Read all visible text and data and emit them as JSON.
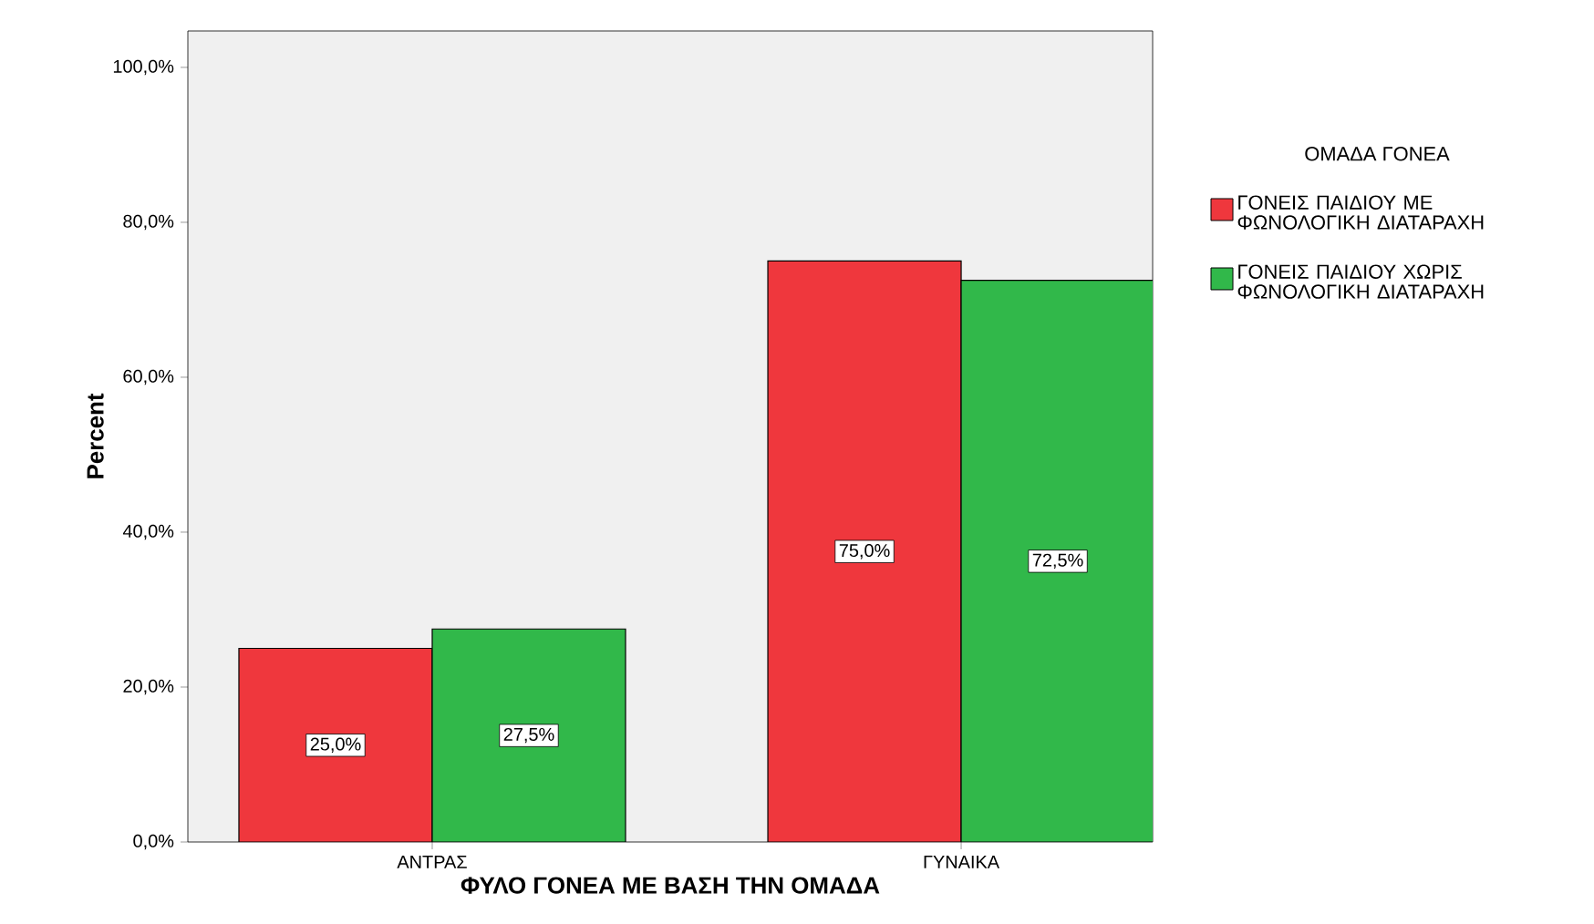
{
  "chart_data": {
    "type": "bar",
    "xlabel": "ΦΥΛΟ ΓΟΝΕΑ ΜΕ ΒΑΣΗ ΤΗΝ ΟΜΑΔΑ",
    "ylabel": "Percent",
    "legend_title": "ΟΜΑΔΑ ΓΟΝΕΑ",
    "categories": [
      "ΑΝΤΡΑΣ",
      "ΓΥΝΑΙΚΑ"
    ],
    "series": [
      {
        "name": "ΓΟΝΕΙΣ ΠΑΙΔΙΟΥ ΜΕ ΦΩΝΟΛΟΓΙΚΗ ΔΙΑΤΑΡΑΧΗ",
        "color": "#ef373d",
        "values": [
          25.0,
          75.0
        ],
        "value_labels": [
          "25,0%",
          "75,0%"
        ]
      },
      {
        "name": "ΓΟΝΕΙΣ ΠΑΙΔΙΟΥ ΧΩΡΙΣ ΦΩΝΟΛΟΓΙΚΗ ΔΙΑΤΑΡΑΧΗ",
        "color": "#31b84a",
        "values": [
          27.5,
          72.5
        ],
        "value_labels": [
          "27,5%",
          "72,5%"
        ]
      }
    ],
    "ylim": [
      0,
      104.7
    ],
    "yticks": [
      {
        "value": 0,
        "label": "0,0%"
      },
      {
        "value": 20,
        "label": "20,0%"
      },
      {
        "value": 40,
        "label": "40,0%"
      },
      {
        "value": 60,
        "label": "60,0%"
      },
      {
        "value": 80,
        "label": "80,0%"
      },
      {
        "value": 100,
        "label": "100,0%"
      }
    ],
    "legend": "right",
    "grid": false
  }
}
